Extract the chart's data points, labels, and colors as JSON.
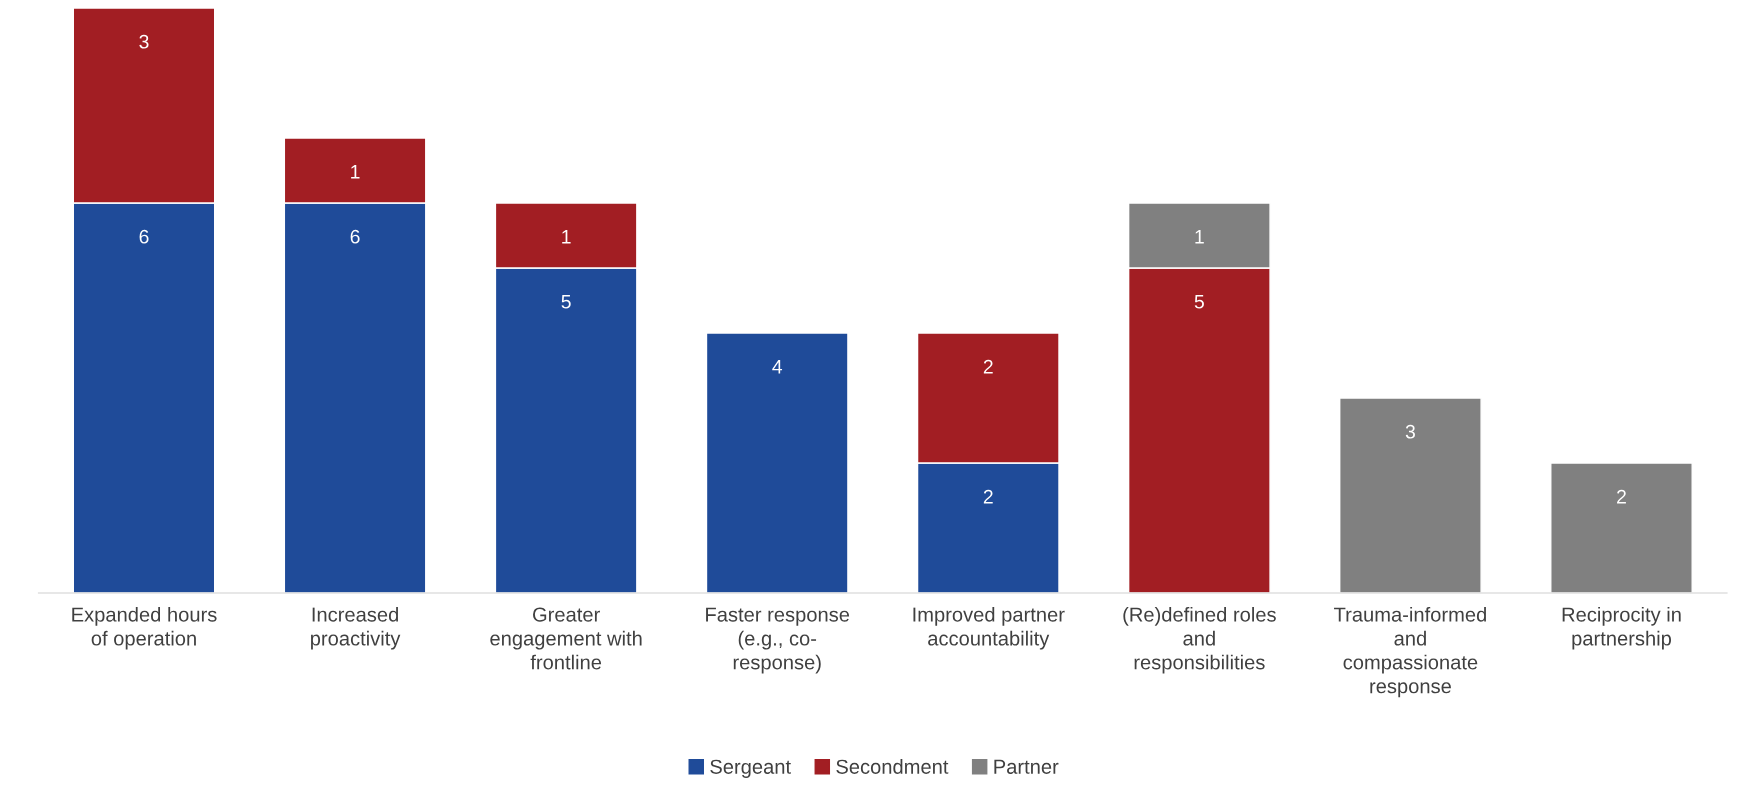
{
  "chart_data": {
    "type": "bar",
    "stacked": true,
    "data_labels": true,
    "legend": "bottom",
    "grid": false,
    "tick_labels": "x",
    "categories": [
      "Expanded hours\nof operation",
      "Increased\nproactivity",
      "Greater\nengagement with\nfrontline",
      "Faster response\n(e.g., co-\nresponse)",
      "Improved partner\naccountability",
      "(Re)defined roles\nand\nresponsibilities",
      "Trauma-informed\nand\ncompassionate\nresponse",
      "Reciprocity in\npartnership"
    ],
    "series": [
      {
        "name": "Sergeant",
        "color": "#1f4b99",
        "values": [
          6,
          6,
          5,
          4,
          2,
          null,
          null,
          null
        ]
      },
      {
        "name": "Secondment",
        "color": "#a21e23",
        "values": [
          3,
          1,
          1,
          null,
          2,
          5,
          null,
          null
        ]
      },
      {
        "name": "Partner",
        "color": "#808080",
        "values": [
          null,
          null,
          null,
          null,
          null,
          1,
          3,
          2
        ]
      }
    ]
  }
}
